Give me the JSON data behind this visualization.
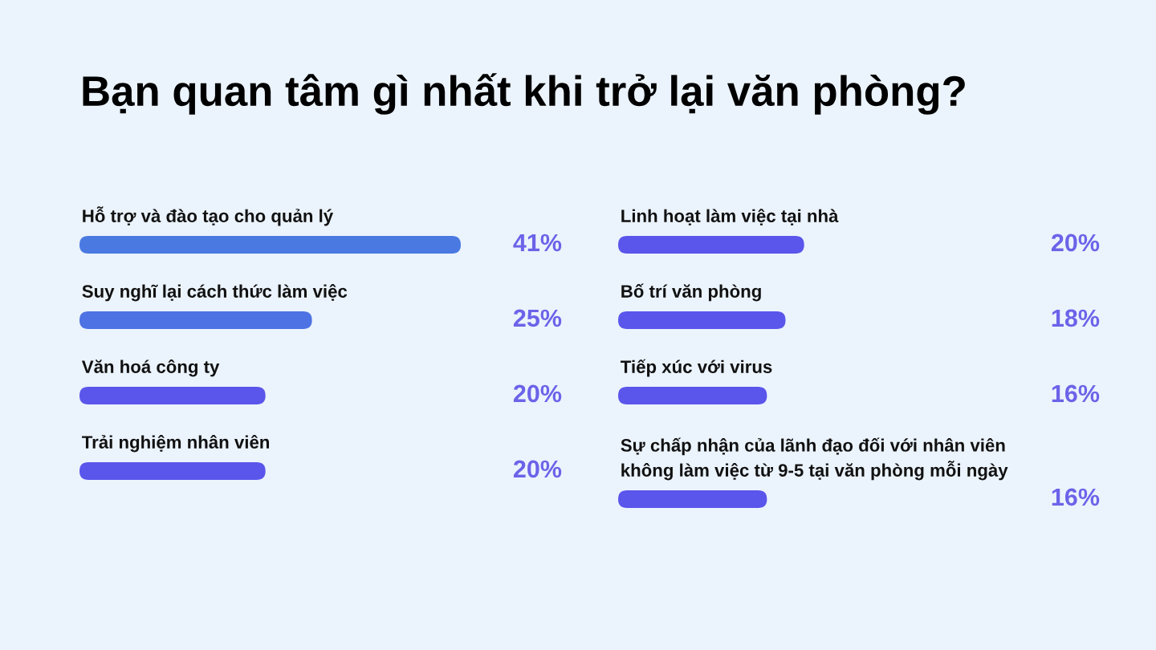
{
  "chart_data": [
    {
      "type": "bar",
      "orientation": "horizontal",
      "title": "Bạn quan tâm gì nhất khi trở lại văn phòng?",
      "categories": [
        "Hỗ trợ và đào tạo cho quản lý",
        "Suy nghĩ lại cách thức làm việc",
        "Văn hoá công ty",
        "Trải nghiệm nhân viên"
      ],
      "values": [
        41,
        25,
        20,
        20
      ],
      "value_labels": [
        "41%",
        "25%",
        "20%",
        "20%"
      ],
      "colors": [
        "#4a79e1",
        "#4c72e3",
        "#5a55eb",
        "#5a55eb"
      ],
      "tick_labels": "y"
    },
    {
      "type": "bar",
      "orientation": "horizontal",
      "categories": [
        "Linh hoạt làm việc tại nhà",
        "Bố trí văn phòng",
        "Tiếp xúc với virus",
        "Sự chấp nhận của lãnh đạo đối với nhân viên\nkhông làm việc từ 9-5 tại văn phòng mỗi ngày"
      ],
      "values": [
        20,
        18,
        16,
        16
      ],
      "value_labels": [
        "20%",
        "18%",
        "16%",
        "16%"
      ],
      "colors": [
        "#5a55eb",
        "#5a55eb",
        "#5a55eb",
        "#5a55eb"
      ],
      "tick_labels": "y"
    }
  ]
}
